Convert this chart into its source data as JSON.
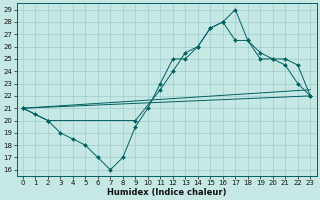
{
  "xlabel": "Humidex (Indice chaleur)",
  "xlim": [
    -0.5,
    23.5
  ],
  "ylim": [
    15.5,
    29.5
  ],
  "yticks": [
    16,
    17,
    18,
    19,
    20,
    21,
    22,
    23,
    24,
    25,
    26,
    27,
    28,
    29
  ],
  "xticks": [
    0,
    1,
    2,
    3,
    4,
    5,
    6,
    7,
    8,
    9,
    10,
    11,
    12,
    13,
    14,
    15,
    16,
    17,
    18,
    19,
    20,
    21,
    22,
    23
  ],
  "bg_color": "#c6e8e4",
  "grid_color": "#9ecece",
  "line_color": "#006060",
  "line1_x": [
    0,
    1,
    2,
    3,
    4,
    5,
    6,
    7,
    8,
    9,
    10,
    11,
    12,
    13,
    14,
    15,
    16,
    17,
    18,
    19,
    20,
    21,
    22,
    23
  ],
  "line1_y": [
    21.0,
    20.5,
    20.0,
    19.0,
    18.5,
    18.0,
    17.0,
    16.0,
    17.0,
    19.5,
    21.0,
    23.0,
    25.0,
    25.0,
    26.0,
    27.5,
    28.0,
    29.0,
    26.5,
    25.0,
    25.0,
    24.5,
    23.0,
    22.0
  ],
  "line2_x": [
    0,
    2,
    9,
    11,
    12,
    13,
    14,
    15,
    16,
    17,
    18,
    19,
    20,
    21,
    22,
    23
  ],
  "line2_y": [
    21.0,
    20.0,
    20.0,
    22.5,
    24.0,
    25.5,
    26.0,
    27.5,
    28.0,
    26.5,
    26.5,
    25.5,
    25.0,
    25.0,
    24.5,
    22.0
  ],
  "line3_x": [
    0,
    23
  ],
  "line3_y": [
    21.0,
    22.0
  ],
  "line4_x": [
    0,
    23
  ],
  "line4_y": [
    21.0,
    22.5
  ]
}
